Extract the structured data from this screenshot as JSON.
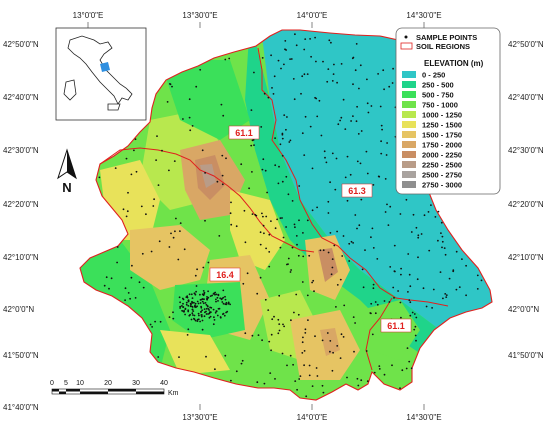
{
  "coordinates": {
    "top": [
      "13°0'0\"E",
      "13°30'0\"E",
      "14°0'0\"E",
      "14°30'0\"E"
    ],
    "bottom": [
      "13°30'0\"E",
      "14°0'0\"E",
      "14°30'0\"E"
    ],
    "left": [
      "42°50'0\"N",
      "42°40'0\"N",
      "42°30'0\"N",
      "42°20'0\"N",
      "42°10'0\"N",
      "42°0'0\"N",
      "41°50'0\"N",
      "41°40'0\"N"
    ],
    "right": [
      "42°50'0\"N",
      "42°40'0\"N",
      "42°30'0\"N",
      "42°20'0\"N",
      "42°10'0\"N",
      "42°0'0\"N",
      "41°50'0\"N"
    ]
  },
  "region_labels": [
    "61.1",
    "61.3",
    "16.4",
    "61.1"
  ],
  "legend": {
    "sample_points": "SAMPLE POINTS",
    "soil_regions": "SOIL REGIONS",
    "elevation_title": "ELEVATION (m)",
    "classes": [
      {
        "label": "0 - 250",
        "color": "#2fc6c6"
      },
      {
        "label": "250 - 500",
        "color": "#1fd48a"
      },
      {
        "label": "500 - 750",
        "color": "#3be05a"
      },
      {
        "label": "750 - 1000",
        "color": "#6fe34a"
      },
      {
        "label": "1000 - 1250",
        "color": "#b8e84e"
      },
      {
        "label": "1250 - 1500",
        "color": "#e8e25a"
      },
      {
        "label": "1500 - 1750",
        "color": "#e6c463"
      },
      {
        "label": "1750 - 2000",
        "color": "#d9a765"
      },
      {
        "label": "2000 - 2250",
        "color": "#c98e63"
      },
      {
        "label": "2250 - 2500",
        "color": "#b99c88"
      },
      {
        "label": "2500 - 2750",
        "color": "#a9a39f"
      },
      {
        "label": "2750 - 3000",
        "color": "#8f8f8f"
      }
    ]
  },
  "north_arrow": "N",
  "scale_bar": {
    "ticks": [
      "0",
      "5",
      "10",
      "20",
      "30",
      "40"
    ],
    "unit": "Km"
  },
  "colors": {
    "region_border": "#e0201e",
    "inset_highlight": "#2f8fe0"
  }
}
